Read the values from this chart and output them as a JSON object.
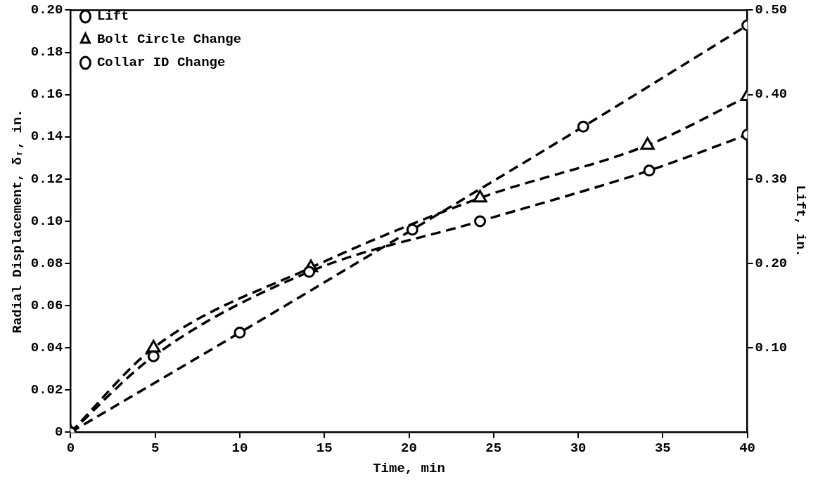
{
  "chart_data": {
    "type": "line",
    "xlabel": "Time, min",
    "ylabel": "Radial Displacement, δᵣ, in.",
    "y2label": "Lift, in.",
    "xlim": [
      0,
      40
    ],
    "xticks": [
      0,
      5,
      10,
      15,
      20,
      25,
      30,
      35,
      40
    ],
    "ylim": [
      0,
      0.2
    ],
    "yticks": [
      0,
      {
        "value": 0.02,
        "label": "0.02"
      },
      {
        "value": 0.04,
        "label": "0.04"
      },
      {
        "value": 0.06,
        "label": "0.06"
      },
      {
        "value": 0.08,
        "label": "0.08"
      },
      {
        "value": 0.1,
        "label": "0.10"
      },
      {
        "value": 0.12,
        "label": "0.12"
      },
      {
        "value": 0.14,
        "label": "0.14"
      },
      {
        "value": 0.16,
        "label": "0.16"
      },
      {
        "value": 0.18,
        "label": "0.18"
      },
      {
        "value": 0.2,
        "label": "0.20"
      }
    ],
    "y2lim": [
      0,
      0.5
    ],
    "y2ticks": [
      {
        "value": 0.1,
        "label": "0.10"
      },
      {
        "value": 0.2,
        "label": "0.20"
      },
      {
        "value": 0.3,
        "label": "0.30"
      },
      {
        "value": 0.4,
        "label": "0.40"
      },
      {
        "value": 0.5,
        "label": "0.50"
      }
    ],
    "grid": false,
    "legend": "top left",
    "line_style": "dashed",
    "series": [
      {
        "name": "Lift",
        "color": "#000000",
        "marker": "circle",
        "axis": "y2",
        "x": [
          0,
          10,
          20.2,
          30.3,
          40
        ],
        "values": [
          0,
          0.118,
          0.24,
          0.362,
          0.482
        ]
      },
      {
        "name": "Bolt Circle Change",
        "color": "#000000",
        "marker": "triangle",
        "x": [
          0,
          4.9,
          14.2,
          24.2,
          34.1,
          40
        ],
        "values": [
          0,
          0.04,
          0.078,
          0.111,
          0.136,
          0.159
        ]
      },
      {
        "name": "Collar ID Change",
        "color": "#000000",
        "marker": "circle",
        "x": [
          0,
          4.9,
          14.1,
          24.2,
          34.2,
          40
        ],
        "values": [
          0,
          0.036,
          0.076,
          0.1,
          0.124,
          0.141
        ]
      }
    ]
  }
}
